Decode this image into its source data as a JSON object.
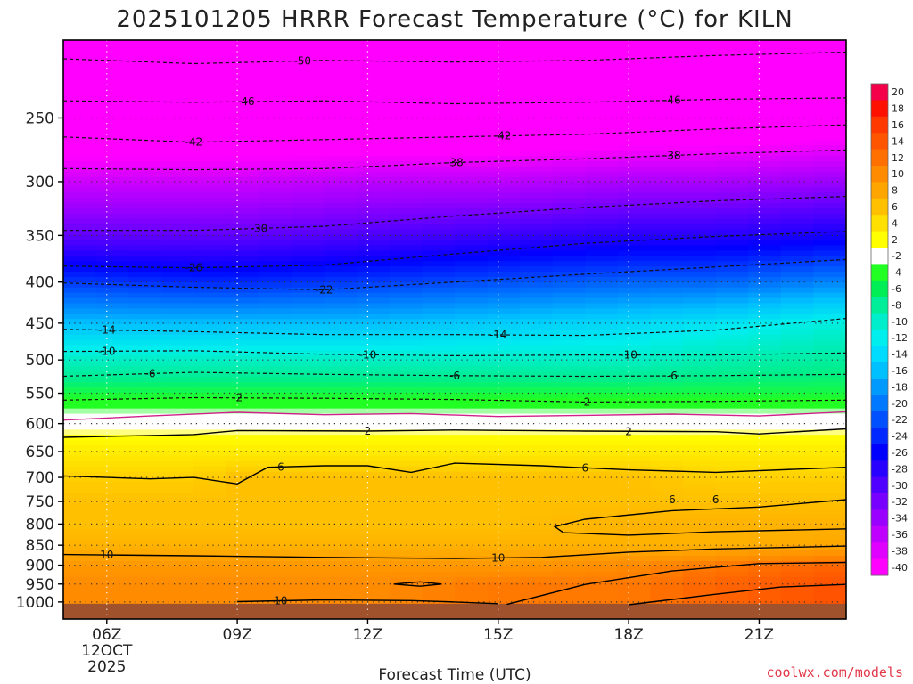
{
  "chart_data": {
    "type": "heatmap",
    "title": "2025101205 HRRR Forecast Temperature (°C) for KILN",
    "xlabel": "Forecast Time (UTC)",
    "ylabel": "",
    "credit": "coolwx.com/models",
    "y_scale": "log",
    "y_direction": "descending (pressure, hPa)",
    "y_range_hPa": [
      1050,
      200
    ],
    "y_ticks": [
      "250",
      "300",
      "350",
      "400",
      "450",
      "500",
      "550",
      "600",
      "650",
      "700",
      "750",
      "800",
      "850",
      "900",
      "950",
      "1000"
    ],
    "x_range_hours": [
      5,
      23
    ],
    "x_ticks": [
      {
        "hour": 6,
        "label": "06Z",
        "sub1": "12OCT",
        "sub2": "2025"
      },
      {
        "hour": 9,
        "label": "09Z"
      },
      {
        "hour": 12,
        "label": "12Z"
      },
      {
        "hour": 15,
        "label": "15Z"
      },
      {
        "hour": 18,
        "label": "18Z"
      },
      {
        "hour": 21,
        "label": "21Z"
      }
    ],
    "grid": "dotted",
    "ground_color": "#a0522d",
    "colorbar": {
      "placement": "right",
      "levels": [
        "20",
        "18",
        "16",
        "14",
        "12",
        "10",
        "8",
        "6",
        "4",
        "2",
        "-2",
        "-4",
        "-6",
        "-8",
        "-10",
        "-12",
        "-14",
        "-16",
        "-18",
        "-20",
        "-22",
        "-24",
        "-26",
        "-28",
        "-30",
        "-32",
        "-34",
        "-36",
        "-38",
        "-40"
      ],
      "colors": [
        "#f4004a",
        "#ff1100",
        "#ff3800",
        "#ff5400",
        "#ff7000",
        "#ff8c00",
        "#ffa500",
        "#ffc000",
        "#ffe000",
        "#ffff00",
        "#ffffff",
        "#22ff22",
        "#00ee55",
        "#00ee99",
        "#00eecc",
        "#00eeee",
        "#00dcff",
        "#00c0ff",
        "#009aff",
        "#0078ff",
        "#0050ff",
        "#0028ff",
        "#0000ff",
        "#2800ff",
        "#5000ff",
        "#7800ff",
        "#9a00ff",
        "#c000ff",
        "#e000ff",
        "#ff00ff"
      ]
    },
    "temperature_profile": {
      "hour": [
        5,
        8,
        9,
        12,
        15,
        18,
        20,
        23
      ],
      "series": [
        {
          "pressure_hPa": 205,
          "values": [
            -50,
            -50,
            -51,
            -51,
            -50,
            -50,
            -50,
            -49
          ]
        },
        {
          "pressure_hPa": 240,
          "values": [
            -46,
            -46,
            -46,
            -46,
            -46,
            -46,
            -46,
            -45
          ]
        },
        {
          "pressure_hPa": 265,
          "values": [
            -42,
            -42,
            -42,
            -42,
            -42,
            -41,
            -41,
            -40
          ]
        },
        {
          "pressure_hPa": 300,
          "values": [
            -37,
            -37,
            -37,
            -36,
            -36,
            -35,
            -35,
            -34
          ]
        },
        {
          "pressure_hPa": 350,
          "values": [
            -31,
            -31,
            -31,
            -30,
            -29,
            -28,
            -28,
            -27
          ]
        },
        {
          "pressure_hPa": 400,
          "values": [
            -23,
            -24,
            -24,
            -23,
            -22,
            -21,
            -21,
            -19
          ]
        },
        {
          "pressure_hPa": 450,
          "values": [
            -16,
            -16,
            -16,
            -16,
            -15,
            -14,
            -13,
            -11
          ]
        },
        {
          "pressure_hPa": 500,
          "values": [
            -10,
            -10,
            -10,
            -10,
            -10,
            -10,
            -9,
            -8
          ]
        },
        {
          "pressure_hPa": 550,
          "values": [
            -5,
            -5,
            -5,
            -5,
            -5,
            -5,
            -5,
            -5
          ]
        },
        {
          "pressure_hPa": 600,
          "values": [
            1,
            1,
            1,
            1,
            1,
            1,
            1,
            1
          ]
        },
        {
          "pressure_hPa": 650,
          "values": [
            4,
            4,
            4,
            4,
            4,
            4,
            4,
            4
          ]
        },
        {
          "pressure_hPa": 700,
          "values": [
            6,
            6,
            7,
            7,
            7,
            7,
            6,
            6
          ]
        },
        {
          "pressure_hPa": 750,
          "values": [
            7,
            7,
            7,
            7,
            7,
            7,
            7,
            7
          ]
        },
        {
          "pressure_hPa": 800,
          "values": [
            7,
            7,
            7,
            7,
            7,
            8,
            8,
            8
          ]
        },
        {
          "pressure_hPa": 850,
          "values": [
            8,
            8,
            8,
            8,
            8,
            8,
            8,
            9
          ]
        },
        {
          "pressure_hPa": 900,
          "values": [
            10,
            10,
            10,
            10,
            10,
            11,
            12,
            13
          ]
        },
        {
          "pressure_hPa": 950,
          "values": [
            11,
            11,
            11,
            11,
            12,
            12,
            13,
            14
          ]
        }
      ]
    },
    "contours": [
      {
        "label": "-50",
        "label_hour": 10.5,
        "style": "dashed",
        "hour": [
          5,
          8,
          11,
          14,
          17,
          20,
          23
        ],
        "pressure": [
          211,
          214,
          212,
          213,
          212,
          209,
          207
        ]
      },
      {
        "label": "-46",
        "label_hour": 9.2,
        "label_hour_2": 19.0,
        "style": "dashed",
        "hour": [
          5,
          8,
          11,
          14,
          17,
          20,
          23
        ],
        "pressure": [
          238,
          239,
          238,
          240,
          239,
          237,
          236
        ]
      },
      {
        "label": "-42",
        "label_hour": 8.0,
        "label_hour_2": 15.1,
        "style": "dashed",
        "hour": [
          5,
          8,
          11,
          14,
          17,
          20,
          23
        ],
        "pressure": [
          264,
          268,
          266,
          264,
          262,
          258,
          255
        ]
      },
      {
        "label": "-38",
        "label_hour": 14.0,
        "label_hour_2": 19.0,
        "style": "dashed",
        "hour": [
          5,
          8,
          11,
          14,
          17,
          20,
          23
        ],
        "pressure": [
          289,
          290,
          289,
          284,
          281,
          277,
          274
        ]
      },
      {
        "label": "-30",
        "label_hour": 9.5,
        "style": "dashed",
        "hour": [
          5,
          8,
          11,
          14,
          17,
          20,
          23
        ],
        "pressure": [
          345,
          345,
          341,
          331,
          323,
          317,
          313
        ]
      },
      {
        "label": "-26",
        "label_hour": 8.0,
        "style": "dashed",
        "hour": [
          5,
          8,
          11,
          14,
          17,
          20,
          23
        ],
        "pressure": [
          382,
          384,
          381,
          369,
          358,
          351,
          346
        ]
      },
      {
        "label": "-22",
        "label_hour": 11.0,
        "style": "dashed",
        "hour": [
          5,
          8,
          11,
          14,
          17,
          20,
          23
        ],
        "pressure": [
          401,
          406,
          409,
          400,
          391,
          383,
          375
        ]
      },
      {
        "label": "-14",
        "label_hour": 6.0,
        "label_hour_2": 15.0,
        "style": "dashed",
        "hour": [
          5,
          8,
          11,
          14,
          17,
          20,
          23
        ],
        "pressure": [
          458,
          461,
          465,
          465,
          466,
          459,
          444
        ]
      },
      {
        "label": "-10",
        "label_hour": 6.0,
        "label_hour_2": 12.0,
        "label_hour_3": 18.0,
        "style": "dashed",
        "hour": [
          5,
          8,
          11,
          14,
          17,
          20,
          23
        ],
        "pressure": [
          488,
          487,
          492,
          494,
          493,
          493,
          490
        ]
      },
      {
        "label": "-6",
        "label_hour": 7.0,
        "label_hour_2": 14.0,
        "label_hour_3": 19.0,
        "style": "dashed",
        "hour": [
          5,
          8,
          11,
          14,
          17,
          20,
          23
        ],
        "pressure": [
          524,
          518,
          521,
          523,
          524,
          523,
          521
        ]
      },
      {
        "label": "-2",
        "label_hour": 9.0,
        "label_hour_2": 17.0,
        "style": "dashed",
        "hour": [
          5,
          8,
          11,
          14,
          17,
          20,
          23
        ],
        "pressure": [
          561,
          557,
          558,
          560,
          564,
          563,
          561
        ]
      },
      {
        "label": "",
        "style": "magenta",
        "hour": [
          5,
          7,
          9,
          11,
          13,
          15,
          17,
          19,
          21,
          23
        ],
        "pressure": [
          594,
          587,
          581,
          585,
          583,
          588,
          586,
          584,
          587,
          580
        ]
      },
      {
        "label": "2",
        "label_hour": 12.0,
        "label_hour_2": 18.0,
        "style": "solid",
        "hour": [
          5,
          8,
          9,
          12,
          14,
          17,
          20,
          21,
          23
        ],
        "pressure": [
          624,
          619,
          612,
          613,
          611,
          613,
          614,
          618,
          609
        ]
      },
      {
        "label": "6",
        "label_hour": 10.0,
        "label_hour_2": 17.0,
        "style": "solid",
        "hour": [
          5,
          7,
          8,
          9,
          9.7,
          11,
          12,
          13,
          14,
          16,
          18,
          20,
          23
        ],
        "pressure": [
          697,
          703,
          700,
          713,
          680,
          677,
          677,
          690,
          672,
          677,
          685,
          690,
          680
        ]
      },
      {
        "label": "6",
        "label_hour": 19.0,
        "label_hour_2": 20.0,
        "style": "solid",
        "hour": [
          23,
          21,
          19,
          17,
          16.3,
          16.5,
          18,
          20,
          23
        ],
        "pressure": [
          746,
          762,
          770,
          789,
          806,
          820,
          826,
          818,
          811
        ]
      },
      {
        "label": "10",
        "label_hour": 6.0,
        "label_hour_2": 15.0,
        "style": "solid",
        "hour": [
          5,
          8,
          11,
          14,
          16,
          18,
          20,
          23
        ],
        "pressure": [
          873,
          876,
          880,
          883,
          880,
          867,
          859,
          852
        ]
      },
      {
        "label": "",
        "style": "solid",
        "hour": [
          15.2,
          17,
          19,
          21,
          23
        ],
        "pressure": [
          1007,
          951,
          915,
          896,
          893
        ]
      },
      {
        "label": "",
        "style": "solid",
        "hour": [
          18,
          20,
          21.5,
          23
        ],
        "pressure": [
          1008,
          978,
          958,
          951
        ]
      },
      {
        "label": "",
        "style": "solid-closed",
        "hour": [
          12.6,
          13.2,
          13.7,
          13.2,
          12.6
        ],
        "pressure": [
          950,
          944,
          950,
          956,
          950
        ]
      },
      {
        "label": "10",
        "label_hour": 10.0,
        "style": "solid",
        "hour": [
          9,
          11,
          13,
          14,
          15
        ],
        "pressure": [
          999,
          994,
          996,
          1000,
          1005
        ]
      }
    ]
  }
}
